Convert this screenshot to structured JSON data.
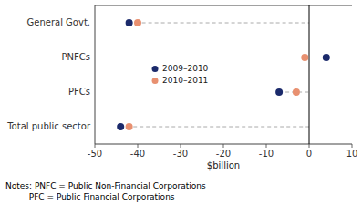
{
  "chart_data": {
    "type": "dot",
    "orientation": "horizontal",
    "categories": [
      "General Govt.",
      "PNFCs",
      "PFCs",
      "Total public sector"
    ],
    "series": [
      {
        "name": "2009–2010",
        "color": "#1b2a6b",
        "values": [
          -42.0,
          4.0,
          -7.0,
          -44.0
        ]
      },
      {
        "name": "2010–2011",
        "color": "#e89070",
        "values": [
          -40.0,
          -1.0,
          -3.0,
          -42.0
        ]
      }
    ],
    "x_label": "$billion",
    "xlim": [
      -50,
      10
    ],
    "xticks": [
      -50,
      -40,
      -30,
      -20,
      -10,
      0,
      10
    ],
    "grid": false,
    "legend": "center left",
    "annotations": [
      "Notes: PNFC = Public Non-Financial Corporations",
      "         PFC = Public Financial Corporations"
    ]
  }
}
